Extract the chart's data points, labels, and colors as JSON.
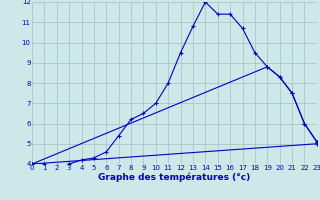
{
  "xlabel": "Graphe des températures (°c)",
  "xlim": [
    0,
    23
  ],
  "ylim": [
    4,
    12
  ],
  "yticks": [
    4,
    5,
    6,
    7,
    8,
    9,
    10,
    11,
    12
  ],
  "xticks": [
    0,
    1,
    2,
    3,
    4,
    5,
    6,
    7,
    8,
    9,
    10,
    11,
    12,
    13,
    14,
    15,
    16,
    17,
    18,
    19,
    20,
    21,
    22,
    23
  ],
  "bg_color": "#cce8e8",
  "grid_color": "#aabcbc",
  "line_color": "#0000cc",
  "curve1_x": [
    0,
    1,
    2,
    3,
    4,
    5,
    6,
    7,
    8,
    9,
    10,
    11,
    12,
    13,
    14,
    15,
    16,
    17,
    18,
    19,
    20,
    21,
    22,
    23
  ],
  "curve1_y": [
    4.0,
    4.0,
    3.9,
    4.0,
    4.2,
    4.3,
    4.6,
    5.4,
    6.2,
    6.5,
    7.0,
    8.0,
    9.5,
    10.8,
    12.0,
    11.4,
    11.4,
    10.7,
    9.5,
    8.8,
    8.3,
    7.5,
    6.0,
    5.1
  ],
  "curve2_x": [
    0,
    19,
    20,
    21,
    22,
    23
  ],
  "curve2_y": [
    4.0,
    8.8,
    8.3,
    7.5,
    6.0,
    5.1
  ],
  "curve3_x": [
    0,
    23
  ],
  "curve3_y": [
    4.0,
    5.0
  ],
  "marker_size": 3,
  "line_width": 0.8,
  "tick_fontsize": 5.0,
  "xlabel_fontsize": 6.5
}
